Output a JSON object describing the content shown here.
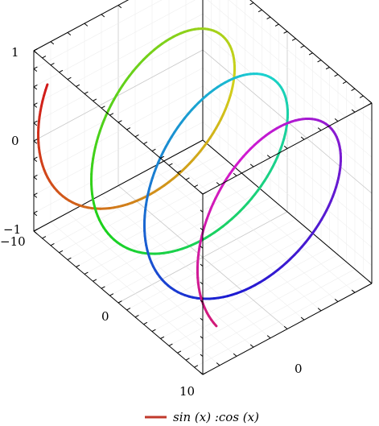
{
  "chart_data": {
    "type": "line",
    "subtype": "3d-parametric-helix",
    "title": "",
    "xlabel": "",
    "ylabel": "",
    "zlabel": "",
    "xlim": [
      -10,
      10
    ],
    "ylim": [
      -1,
      1
    ],
    "zlim": [
      -1,
      1
    ],
    "x_ticks": [
      -10,
      0,
      10
    ],
    "x_tick_labels": [
      "−10",
      "0",
      "10"
    ],
    "y_ticks": [
      0
    ],
    "y_tick_labels": [
      "0"
    ],
    "z_ticks": [
      -1,
      0,
      1
    ],
    "z_tick_labels": [
      "−1",
      "0",
      "1"
    ],
    "grid": true,
    "minor_grid": true,
    "colormap": "hsv",
    "series": [
      {
        "name": "sin (x) :cos (x)",
        "color": "#c0392b",
        "x_expr": "x",
        "y_expr": "cos(x)",
        "z_expr": "sin(x)",
        "x_domain": [
          -10,
          10
        ],
        "samples": 400
      }
    ],
    "legend": {
      "position": "bottom-center",
      "entries": [
        "sin (x) :cos (x)"
      ]
    }
  }
}
